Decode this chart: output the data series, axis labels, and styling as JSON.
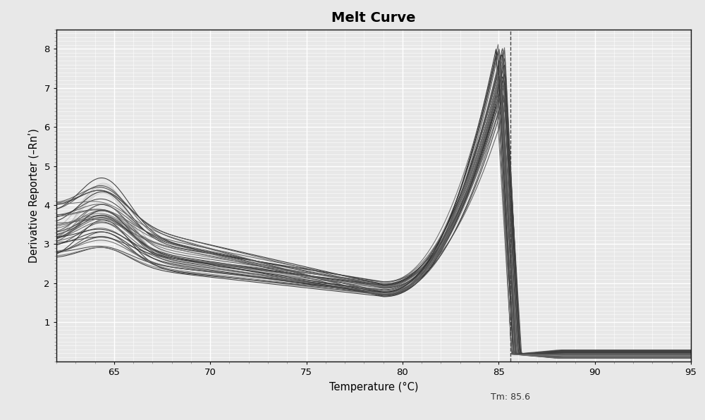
{
  "title": "Melt Curve",
  "xlabel": "Temperature (°C)",
  "ylabel": "Derivative Reporter (–Rnʹ)",
  "xlim": [
    62.0,
    95.0
  ],
  "ylim": [
    0.0,
    8.5
  ],
  "yticks": [
    1.0,
    2.0,
    3.0,
    4.0,
    5.0,
    6.0,
    7.0,
    8.0
  ],
  "xticks": [
    65.0,
    70.0,
    75.0,
    80.0,
    85.0,
    90.0,
    95.0
  ],
  "tm_x": 85.6,
  "tm_label": "Tm: 85.6",
  "background_color": "#e8e8e8",
  "grid_color": "#ffffff",
  "n_curves_dark": 38,
  "n_curves_light": 6,
  "figsize": [
    10.0,
    5.96
  ],
  "dpi": 100
}
